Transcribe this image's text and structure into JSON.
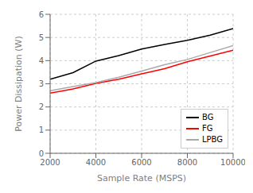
{
  "chart_data": {
    "type": "line",
    "xlabel": "Sample Rate (MSPS)",
    "ylabel": "Power Dissipation (W)",
    "x": [
      2000,
      3000,
      4000,
      5000,
      6000,
      7000,
      8000,
      9000,
      10000
    ],
    "series": [
      {
        "name": "BG",
        "color": "#000000",
        "values": [
          3.2,
          3.48,
          3.98,
          4.22,
          4.5,
          4.7,
          4.88,
          5.1,
          5.38
        ]
      },
      {
        "name": "FG",
        "color": "#ff0000",
        "values": [
          2.6,
          2.78,
          3.02,
          3.2,
          3.43,
          3.65,
          3.95,
          4.2,
          4.45
        ]
      },
      {
        "name": "LPBG",
        "color": "#aaaaaa",
        "values": [
          2.7,
          2.88,
          3.05,
          3.28,
          3.55,
          3.82,
          4.05,
          4.35,
          4.65
        ]
      }
    ],
    "xlim": [
      2000,
      10000
    ],
    "ylim": [
      0,
      6
    ],
    "xticks": [
      2000,
      4000,
      6000,
      8000,
      10000
    ],
    "yticks": [
      0,
      1,
      2,
      3,
      4,
      5,
      6
    ],
    "grid": true,
    "legend": "lower right"
  }
}
